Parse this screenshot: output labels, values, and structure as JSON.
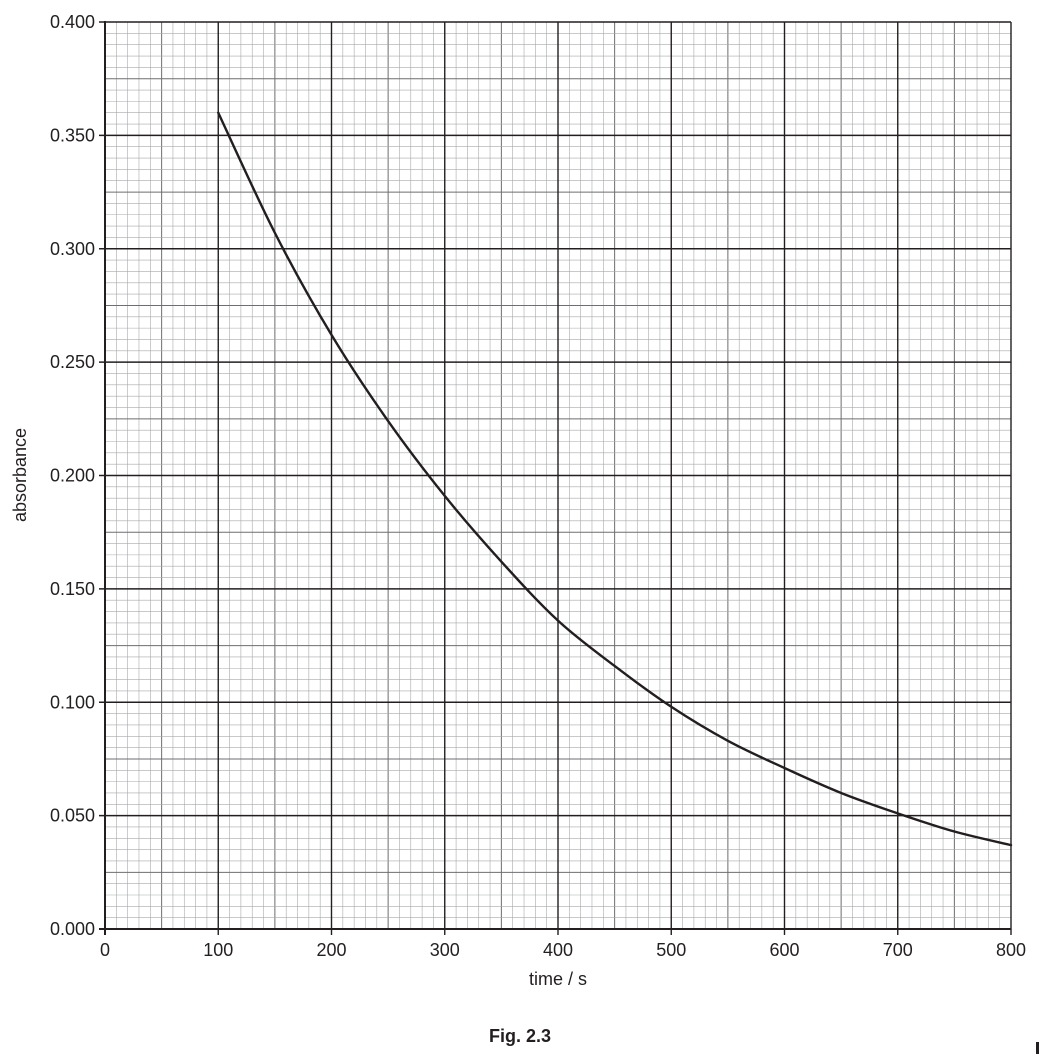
{
  "figure": {
    "caption": "Fig. 2.3"
  },
  "chart_data": {
    "type": "line",
    "title": "",
    "xlabel": "time / s",
    "ylabel": "absorbance",
    "xlim": [
      0,
      800
    ],
    "ylim": [
      0.0,
      0.4
    ],
    "x_ticks": [
      "0",
      "100",
      "200",
      "300",
      "400",
      "500",
      "600",
      "700",
      "800"
    ],
    "y_ticks": [
      "0.000",
      "0.050",
      "0.100",
      "0.150",
      "0.200",
      "0.250",
      "0.300",
      "0.350",
      "0.400"
    ],
    "grid": true,
    "legend": false,
    "series": [
      {
        "color": "#231f20",
        "x": [
          100,
          150,
          200,
          250,
          300,
          350,
          400,
          450,
          500,
          550,
          600,
          650,
          700,
          750,
          800
        ],
        "y": [
          0.36,
          0.307,
          0.262,
          0.224,
          0.191,
          0.162,
          0.136,
          0.116,
          0.098,
          0.083,
          0.071,
          0.06,
          0.051,
          0.043,
          0.037
        ]
      }
    ]
  }
}
